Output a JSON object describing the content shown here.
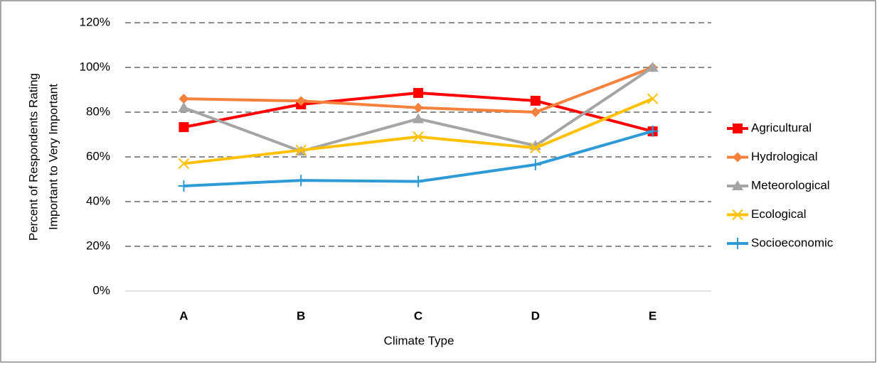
{
  "chart_data": {
    "type": "line",
    "ylabel": [
      "Percent of Respondents Rating",
      "Important to Very Important"
    ],
    "xlabel": "Climate Type",
    "categories": [
      "A",
      "B",
      "C",
      "D",
      "E"
    ],
    "series": [
      {
        "name": "Agricultural",
        "color": "#ff0000",
        "marker": "square",
        "values": [
          73.3,
          83.5,
          88.6,
          85.1,
          71.4
        ]
      },
      {
        "name": "Hydrological",
        "color": "#f4823c",
        "marker": "diamond",
        "values": [
          86,
          85,
          82,
          80,
          100
        ]
      },
      {
        "name": "Meteorological",
        "color": "#a5a5a5",
        "marker": "triangle",
        "values": [
          82,
          62.5,
          77,
          65,
          100
        ]
      },
      {
        "name": "Ecological",
        "color": "#ffc000",
        "marker": "x",
        "values": [
          57,
          63,
          69,
          64,
          86
        ]
      },
      {
        "name": "Socioeconomic",
        "color": "#2e9bd6",
        "marker": "plus",
        "values": [
          47,
          49.5,
          49,
          56.5,
          71.5
        ]
      }
    ],
    "ylim": [
      0,
      120
    ],
    "yticks": [
      {
        "value": 0,
        "label": "0%"
      },
      {
        "value": 20,
        "label": "20%"
      },
      {
        "value": 40,
        "label": "40%"
      },
      {
        "value": 60,
        "label": "60%"
      },
      {
        "value": 80,
        "label": "80%"
      },
      {
        "value": 100,
        "label": "100%"
      },
      {
        "value": 120,
        "label": "120%"
      }
    ],
    "grid": true,
    "legend": "right"
  }
}
